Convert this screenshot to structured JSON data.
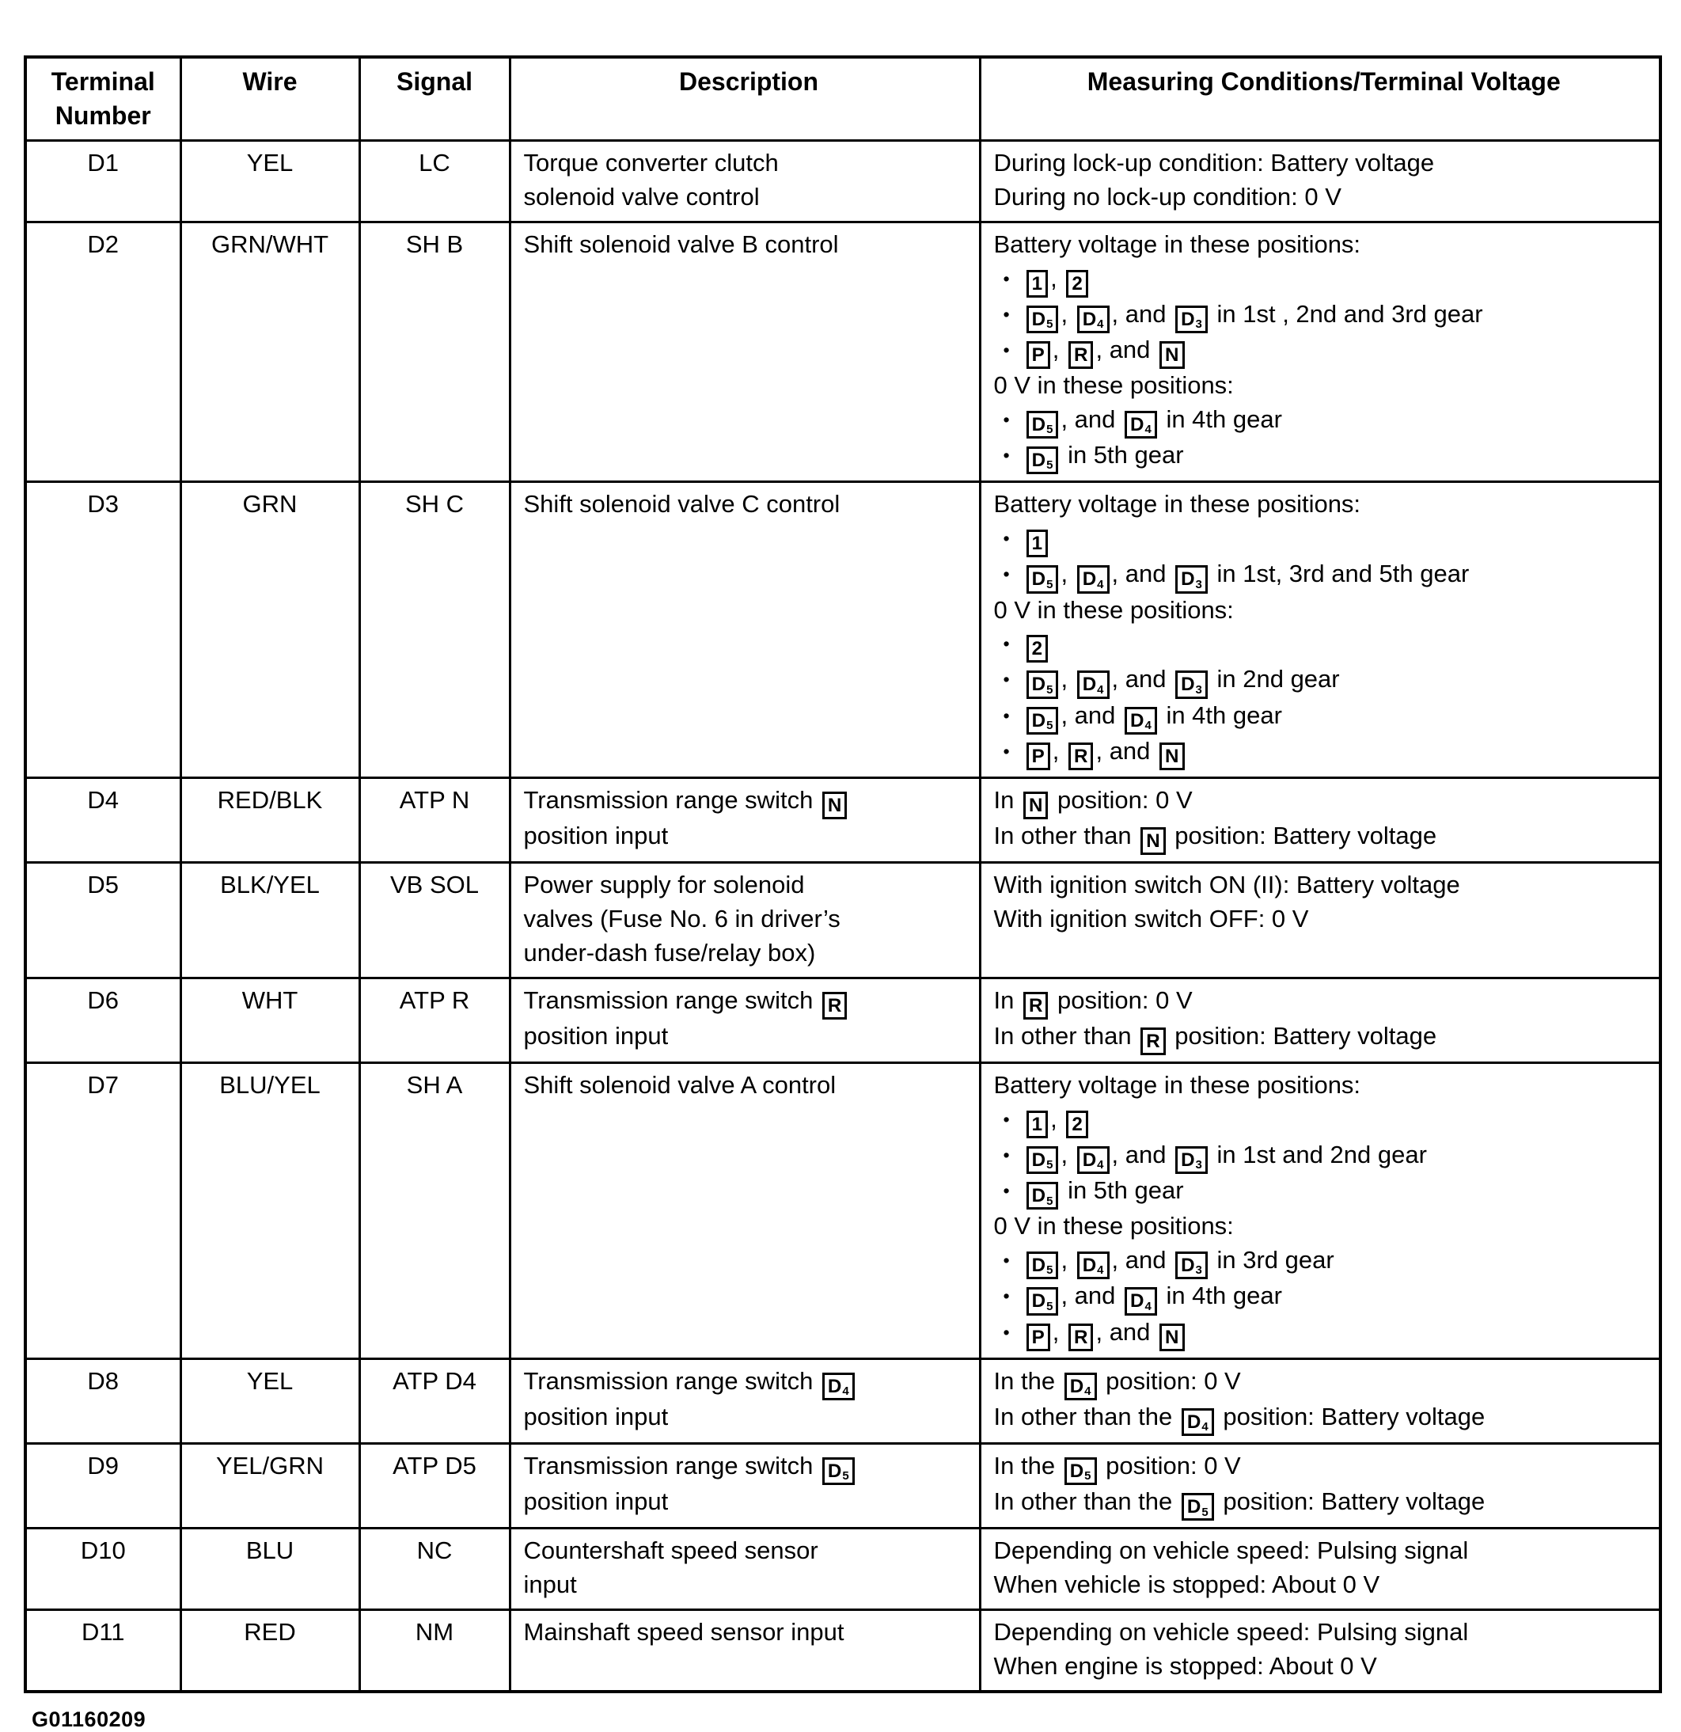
{
  "table": {
    "headers": [
      "Terminal Number",
      "Wire",
      "Signal",
      "Description",
      "Measuring Conditions/Terminal Voltage"
    ],
    "rows": [
      {
        "terminal": "D1",
        "wire": "YEL",
        "signal": "LC",
        "description": [
          "Torque converter clutch",
          "solenoid valve control"
        ],
        "conditions": [
          "During lock-up condition: Battery voltage",
          "During no lock-up condition: 0 V"
        ]
      },
      {
        "terminal": "D2",
        "wire": "GRN/WHT",
        "signal": "SH B",
        "description": [
          "Shift solenoid valve B control"
        ],
        "conditions": [
          "Battery voltage in these positions:",
          "• [1], [2]",
          "• [D5], [D4], and [D3] in 1st , 2nd and 3rd gear",
          "• [P], [R], and [N]",
          "0 V in these positions:",
          "• [D5], and [D4] in 4th gear",
          "• [D5] in 5th gear"
        ]
      },
      {
        "terminal": "D3",
        "wire": "GRN",
        "signal": "SH C",
        "description": [
          "Shift solenoid valve C control"
        ],
        "conditions": [
          "Battery voltage in these positions:",
          "• [1]",
          "• [D5], [D4], and [D3] in 1st, 3rd and 5th gear",
          "0 V in these positions:",
          "• [2]",
          "• [D5], [D4], and [D3] in 2nd gear",
          "• [D5], and [D4] in 4th gear",
          "• [P], [R], and [N]"
        ]
      },
      {
        "terminal": "D4",
        "wire": "RED/BLK",
        "signal": "ATP N",
        "description": [
          "Transmission range switch [N]",
          "position input"
        ],
        "conditions": [
          "In [N] position: 0 V",
          "In other than [N] position: Battery voltage"
        ]
      },
      {
        "terminal": "D5",
        "wire": "BLK/YEL",
        "signal": "VB SOL",
        "description": [
          "Power supply for solenoid",
          "valves (Fuse No. 6 in driver’s",
          "under-dash fuse/relay box)"
        ],
        "conditions": [
          "With ignition switch ON (II): Battery voltage",
          "With ignition switch OFF: 0 V"
        ]
      },
      {
        "terminal": "D6",
        "wire": "WHT",
        "signal": "ATP R",
        "description": [
          "Transmission range switch [R]",
          "position input"
        ],
        "conditions": [
          "In [R] position: 0 V",
          "In other than [R] position: Battery voltage"
        ]
      },
      {
        "terminal": "D7",
        "wire": "BLU/YEL",
        "signal": "SH A",
        "description": [
          "Shift solenoid valve A control"
        ],
        "conditions": [
          "Battery voltage in these positions:",
          "• [1], [2]",
          "• [D5], [D4], and [D3] in 1st and 2nd gear",
          "• [D5] in 5th gear",
          "0 V in these positions:",
          "• [D5], [D4], and [D3] in 3rd gear",
          "• [D5], and [D4] in 4th gear",
          "• [P], [R], and [N]"
        ]
      },
      {
        "terminal": "D8",
        "wire": "YEL",
        "signal": "ATP D4",
        "description": [
          "Transmission range switch [D4]",
          "position input"
        ],
        "conditions": [
          "In the [D4] position: 0 V",
          "In other than the [D4] position: Battery voltage"
        ]
      },
      {
        "terminal": "D9",
        "wire": "YEL/GRN",
        "signal": "ATP D5",
        "description": [
          "Transmission range switch [D5]",
          "position input"
        ],
        "conditions": [
          "In the [D5] position: 0 V",
          "In other than the [D5] position: Battery voltage"
        ]
      },
      {
        "terminal": "D10",
        "wire": "BLU",
        "signal": "NC",
        "description": [
          "Countershaft speed sensor",
          "input"
        ],
        "conditions": [
          "Depending on vehicle speed: Pulsing signal",
          "When vehicle is stopped: About 0 V"
        ]
      },
      {
        "terminal": "D11",
        "wire": "RED",
        "signal": "NM",
        "description": [
          "Mainshaft speed sensor input"
        ],
        "conditions": [
          "Depending on vehicle speed: Pulsing signal",
          "When engine is stopped: About 0 V"
        ]
      }
    ]
  },
  "footer": "G01160209",
  "colors": {
    "ink": "#000000",
    "paper": "#ffffff"
  }
}
